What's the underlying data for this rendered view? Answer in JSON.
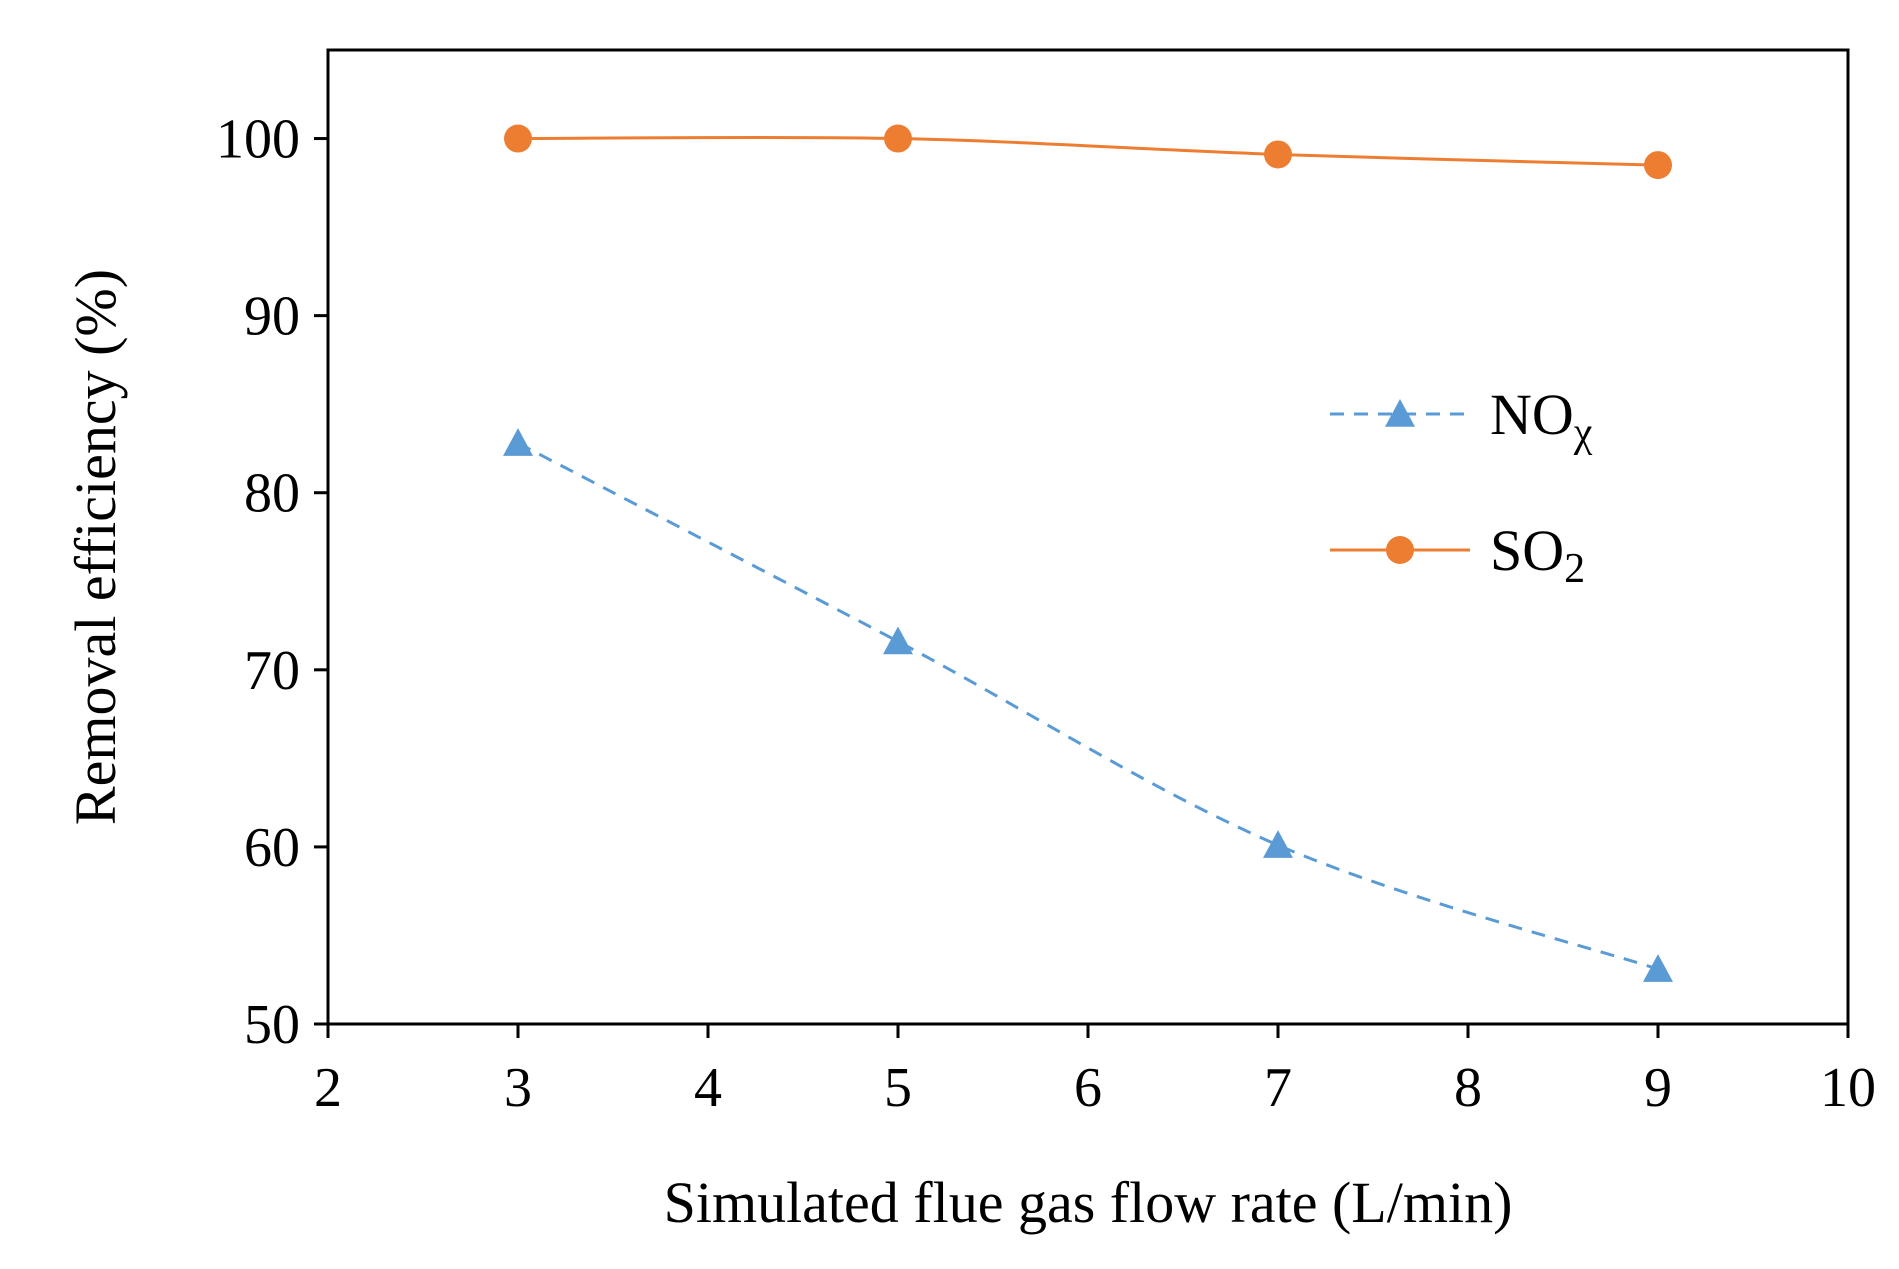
{
  "chart_data": {
    "type": "line",
    "title": "",
    "xlabel": "Simulated flue gas flow rate (L/min)",
    "ylabel": "Removal efficiency (%)",
    "xlim": [
      2,
      10
    ],
    "ylim": [
      50,
      105
    ],
    "xticks": [
      2,
      3,
      4,
      5,
      6,
      7,
      8,
      9,
      10
    ],
    "yticks": [
      50,
      60,
      70,
      80,
      90,
      100
    ],
    "grid": false,
    "legend_position": "center-right",
    "x": [
      3,
      5,
      7,
      9
    ],
    "series": [
      {
        "name": "NOχ",
        "legend_main": "NO",
        "legend_sub": "χ",
        "values": [
          82.8,
          71.6,
          60.1,
          53.1
        ],
        "color": "#5B9BD5",
        "line_style": "dashed",
        "marker": "triangle"
      },
      {
        "name": "SO2",
        "legend_main": "SO",
        "legend_sub": "2",
        "values": [
          100.0,
          100.0,
          99.1,
          98.5
        ],
        "color": "#ED7D31",
        "line_style": "solid",
        "marker": "circle"
      }
    ]
  }
}
